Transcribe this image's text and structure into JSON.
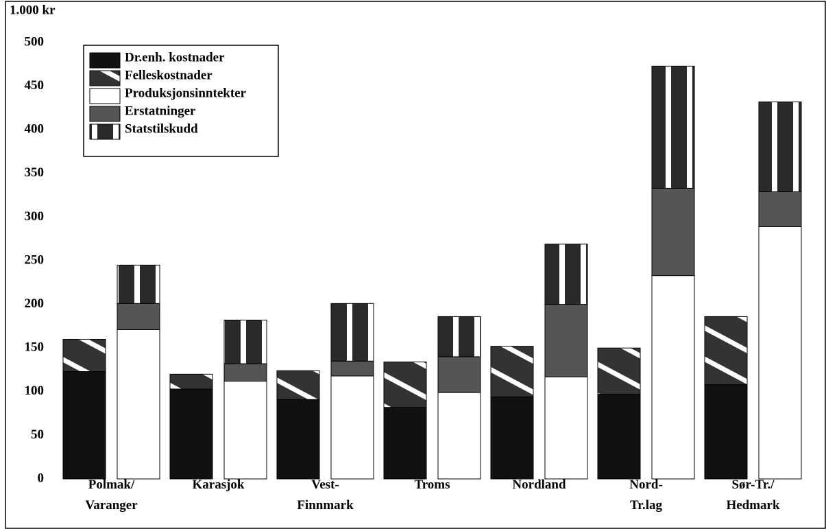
{
  "chart_data": {
    "type": "stacked-bar",
    "title": "1.000 kr",
    "categories": [
      "Polmak/\nVaranger",
      "Karasjok",
      "Vest-\nFinnmark",
      "Troms",
      "Nordland",
      "Nord-\nTr.lag",
      "Sør-Tr./\nHedmark"
    ],
    "stacks": [
      {
        "series": [
          {
            "name": "Dr.enh. kostnader",
            "color": "#111111",
            "pattern": "solid",
            "values": [
              123,
              103,
              91,
              82,
              94,
              97,
              108
            ]
          },
          {
            "name": "Felleskostnader",
            "color": "#333333",
            "pattern": "diagonal",
            "values": [
              37,
              17,
              33,
              52,
              58,
              53,
              78
            ]
          }
        ]
      },
      {
        "series": [
          {
            "name": "Produksjonsinntekter",
            "color": "#ffffff",
            "pattern": "solid",
            "values": [
              171,
              112,
              118,
              99,
              117,
              233,
              289
            ]
          },
          {
            "name": "Erstatninger",
            "color": "#555555",
            "pattern": "solid",
            "values": [
              30,
              20,
              17,
              41,
              83,
              100,
              40
            ]
          },
          {
            "name": "Statstilskudd",
            "color": "#2a2a2a",
            "pattern": "vertical",
            "values": [
              44,
              50,
              66,
              46,
              69,
              140,
              103
            ]
          }
        ]
      }
    ],
    "ylim": [
      0,
      500
    ],
    "yticks": [
      0,
      50,
      100,
      150,
      200,
      250,
      300,
      350,
      400,
      450,
      500
    ],
    "grid": false
  }
}
